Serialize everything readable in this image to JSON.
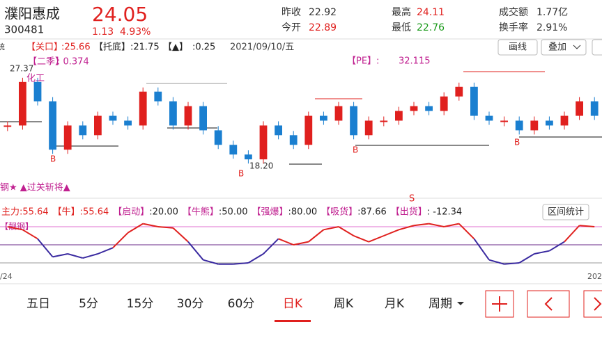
{
  "header": {
    "name": "濮阳惠成",
    "code": "300481",
    "price": "24.05",
    "change": "1.13",
    "change_pct": "4.93%",
    "stats": [
      {
        "label": "昨收",
        "value": "22.92"
      },
      {
        "label": "今开",
        "value": "22.89"
      },
      {
        "label": "最高",
        "value": "24.11"
      },
      {
        "label": "最低",
        "value": "22.76"
      },
      {
        "label": "成交额",
        "value": "1.77亿"
      },
      {
        "label": "换手率",
        "value": "2.91%"
      }
    ]
  },
  "toolbar": {
    "cut": "统",
    "items": [
      {
        "label": "【关口】",
        "value": ":25.66"
      },
      {
        "label": "【托底】",
        "value": ":21.75"
      },
      {
        "label": "【▲】",
        "value": ":0.25"
      }
    ],
    "date": "2021/09/10/五",
    "buttons": [
      "画线",
      "叠加"
    ]
  },
  "main_chart": {
    "labels": {
      "season": "【二季】",
      "season_value": ": 0.374",
      "pe": "【PE】:",
      "pe_value": "32.115",
      "high": "27.37",
      "sector": "化工",
      "low": "18.20",
      "buy_marks": [
        "B",
        "B",
        "B",
        "B"
      ]
    },
    "closes": [
      22,
      26.5,
      24.5,
      19.5,
      22,
      21,
      23,
      22.5,
      22,
      25.5,
      24.5,
      22,
      24,
      21.5,
      20,
      19,
      18.5,
      22,
      21,
      20,
      23,
      22.5,
      24,
      21,
      22.5,
      22.5,
      23.5,
      24,
      23.5,
      25,
      26,
      23,
      22.5,
      22.5,
      21.5,
      22.5,
      22,
      23,
      24.5,
      23
    ],
    "ylim": [
      17,
      28.5
    ]
  },
  "signal_text": "钢★ ▲过关斩将▲",
  "indicator": {
    "items": [
      {
        "label": "主力",
        "value": ":55.64"
      },
      {
        "label": "【牛】",
        "value": ":55.64"
      },
      {
        "label": "【启动】",
        "value": ":20.00"
      },
      {
        "label": "【牛熊】",
        "value": ":50.00"
      },
      {
        "label": "【强爆】",
        "value": ":80.00"
      },
      {
        "label": "【吸货】",
        "value": ":87.66"
      },
      {
        "label": "【出货】",
        "value": ": -12.34"
      }
    ],
    "button": "区间统计",
    "tag": "【靓钢】",
    "sell_mark": "S",
    "values": [
      80,
      75,
      60,
      30,
      35,
      28,
      35,
      45,
      70,
      85,
      80,
      78,
      55,
      25,
      18,
      18,
      20,
      35,
      60,
      50,
      55,
      75,
      80,
      65,
      55,
      65,
      75,
      82,
      85,
      80,
      85,
      60,
      25,
      18,
      20,
      35,
      40,
      55,
      82,
      80
    ],
    "ylim": [
      0,
      100
    ],
    "dates": [
      "/24",
      "202"
    ]
  },
  "tabs": {
    "items": [
      "五日",
      "5分",
      "15分",
      "30分",
      "60分",
      "日K",
      "周K",
      "月K",
      "周期"
    ],
    "active": "日K"
  }
}
